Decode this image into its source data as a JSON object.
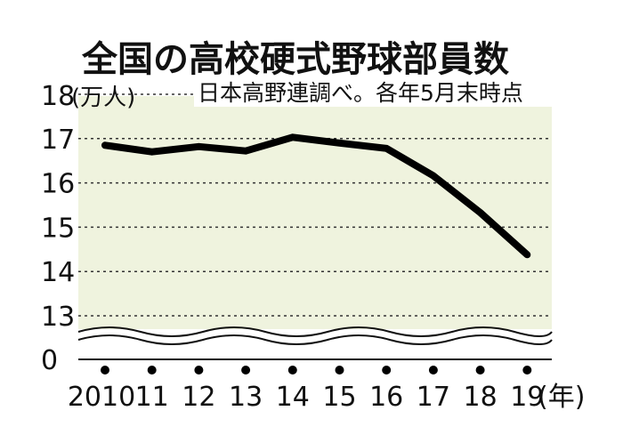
{
  "chart_data": {
    "type": "line",
    "title": "全国の高校硬式野球部員数",
    "source_note": "日本高野連調べ。各年5月末時点",
    "y_unit": "(万人)",
    "x_unit": "(年)",
    "x": [
      "2010",
      "11",
      "12",
      "13",
      "14",
      "15",
      "16",
      "17",
      "18",
      "19"
    ],
    "values": [
      16.85,
      16.7,
      16.82,
      16.72,
      17.03,
      16.9,
      16.78,
      16.16,
      15.33,
      14.38
    ],
    "y_ticks": [
      "18",
      "17",
      "16",
      "15",
      "14",
      "13",
      "0"
    ],
    "ylim": [
      13,
      18
    ],
    "axis_break": true,
    "grid": "dashed horizontal",
    "colors": {
      "plot_bg": "#eff3de",
      "line": "#111111"
    }
  }
}
